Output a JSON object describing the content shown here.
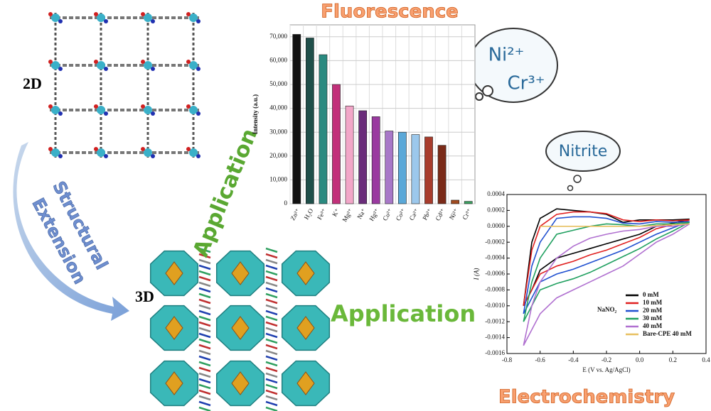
{
  "labels": {
    "two_d": "2D",
    "three_d": "3D",
    "structural": "Structural",
    "extension": "Extension",
    "application_1": "Application",
    "application_2": "Application",
    "ion_1": "Ni²⁺",
    "ion_2": "Cr³⁺",
    "nitrite": "Nitrite"
  },
  "chart_data": [
    {
      "type": "bar",
      "title": "Fluorescence",
      "ylabel": "Intensity (a.u.)",
      "categories": [
        "Zn²⁺",
        "H₂O",
        "Fe³⁺",
        "K⁺",
        "Mg²⁺",
        "Na⁺",
        "Hg²⁺",
        "Cu²⁺",
        "Co²⁺",
        "Ca²⁺",
        "Pb²⁺",
        "Cd²⁺",
        "Ni²⁺",
        "Cr³⁺"
      ],
      "values": [
        71000,
        69500,
        62500,
        50000,
        41000,
        39000,
        36500,
        30500,
        30000,
        29000,
        28000,
        24500,
        1500,
        1000
      ],
      "colors": [
        "#111111",
        "#1f4f4a",
        "#2a8a80",
        "#c2307a",
        "#f2a6c8",
        "#6a2c7a",
        "#9a3aa0",
        "#a878c8",
        "#5aa8d8",
        "#9cc8ec",
        "#a83c2c",
        "#7a2a18",
        "#a04a20",
        "#3aa060"
      ],
      "ylim": [
        0,
        75000
      ],
      "yticks": [
        0,
        {
          "value": 10000,
          "label": "10,000"
        },
        {
          "value": 20000,
          "label": "20,000"
        },
        {
          "value": 30000,
          "label": "30,000"
        },
        {
          "value": 40000,
          "label": "40,000"
        },
        {
          "value": 50000,
          "label": "50,000"
        },
        {
          "value": 60000,
          "label": "60,000"
        },
        {
          "value": 70000,
          "label": "70,000"
        }
      ],
      "grid": true
    },
    {
      "type": "line",
      "title": "Electrochemistry",
      "xlabel": "E (V vs. Ag/AgCl)",
      "ylabel": "I (A)",
      "annotation": "NaNO₂",
      "x": [
        -0.7,
        -0.65,
        -0.6,
        -0.5,
        -0.4,
        -0.3,
        -0.2,
        -0.1,
        0,
        0.1,
        0.2,
        0.3,
        0.2,
        0.1,
        0,
        -0.1,
        -0.2,
        -0.3,
        -0.4,
        -0.5,
        -0.6,
        -0.65,
        -0.7
      ],
      "series": [
        {
          "name": "0 mM",
          "color": "#000000",
          "values": [
            -0.001,
            -0.0002,
            0.0001,
            0.00022,
            0.0002,
            0.00018,
            0.00015,
            5e-05,
            8e-05,
            8e-05,
            8e-05,
            9e-05,
            4e-05,
            0.0,
            -0.0001,
            -0.00016,
            -0.00022,
            -0.00028,
            -0.00034,
            -0.0004,
            -0.00055,
            -0.0008,
            -0.001
          ]
        },
        {
          "name": "10 mM",
          "color": "#e02020",
          "values": [
            -0.001,
            -0.0003,
            0.0,
            0.00015,
            0.00018,
            0.00018,
            0.00016,
            8e-05,
            6e-05,
            8e-05,
            7e-05,
            8e-05,
            2e-05,
            -3e-05,
            -0.00014,
            -0.00022,
            -0.0003,
            -0.00036,
            -0.00044,
            -0.0005,
            -0.0006,
            -0.0008,
            -0.001
          ]
        },
        {
          "name": "20 mM",
          "color": "#2050d0",
          "values": [
            -0.0011,
            -0.0005,
            -0.0002,
            0.0001,
            0.00012,
            0.00012,
            0.0001,
            4e-05,
            3e-05,
            6e-05,
            5e-05,
            6e-05,
            -2e-05,
            -0.0001,
            -0.0002,
            -0.0003,
            -0.00038,
            -0.00046,
            -0.00054,
            -0.0006,
            -0.0007,
            -0.0009,
            -0.0011
          ]
        },
        {
          "name": "30 mM",
          "color": "#20a060",
          "values": [
            -0.0012,
            -0.0007,
            -0.0004,
            -0.0001,
            -5e-05,
            0.0,
            3e-05,
            2e-05,
            0.0,
            3e-05,
            3e-05,
            5e-05,
            -6e-05,
            -0.00016,
            -0.00028,
            -0.00038,
            -0.00048,
            -0.00058,
            -0.00066,
            -0.00072,
            -0.0008,
            -0.001,
            -0.0012
          ]
        },
        {
          "name": "40 mM",
          "color": "#b070d0",
          "values": [
            -0.0015,
            -0.001,
            -0.0007,
            -0.0004,
            -0.00025,
            -0.00015,
            -0.0001,
            -6e-05,
            -4e-05,
            0.0,
            0.0,
            3e-05,
            -0.0001,
            -0.0002,
            -0.00035,
            -0.0005,
            -0.0006,
            -0.0007,
            -0.0008,
            -0.0009,
            -0.0011,
            -0.0013,
            -0.0015
          ]
        },
        {
          "name": "Bare-CPE 40 mM",
          "color": "#e8c060",
          "values": [
            null,
            null,
            0.0,
            0.0,
            0.0,
            0.0,
            0.0,
            0.0,
            0.0,
            1e-05,
            2e-05,
            3e-05,
            null,
            null,
            null,
            null,
            null,
            null,
            null,
            null,
            null,
            null,
            null
          ]
        }
      ],
      "xlim": [
        -0.8,
        0.4
      ],
      "xticks": [
        -0.8,
        -0.6,
        -0.4,
        -0.2,
        {
          "value": 0,
          "label": "0.0"
        },
        0.2,
        0.4
      ],
      "ylim": [
        -0.0016,
        0.0004
      ],
      "yticks": [
        -0.0016,
        -0.0014,
        -0.0012,
        {
          "value": -0.001,
          "label": "-0.0010"
        },
        -0.0008,
        -0.0006,
        -0.0004,
        -0.0002,
        {
          "value": 0,
          "label": "0.0000"
        },
        0.0002,
        0.0004
      ],
      "legend": "lower right"
    }
  ]
}
